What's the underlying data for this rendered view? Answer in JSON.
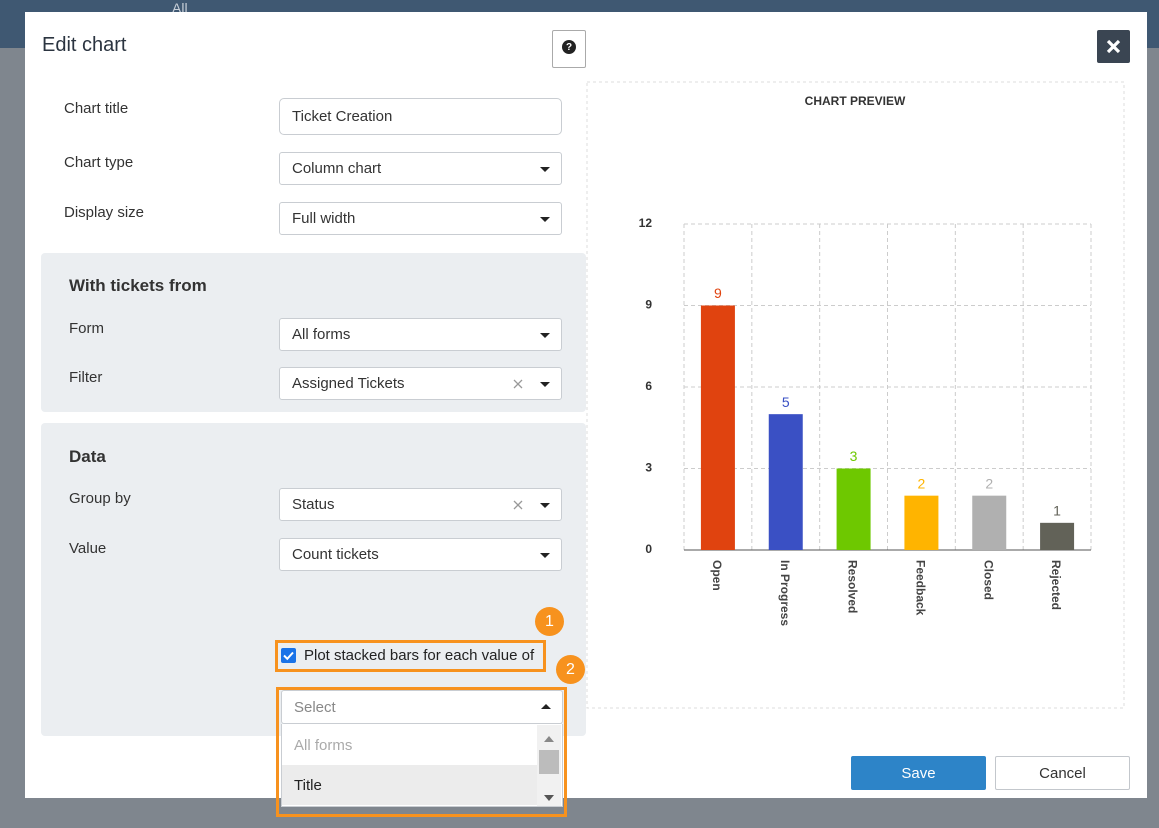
{
  "background": {
    "tab": "All"
  },
  "dialog": {
    "title": "Edit chart",
    "help": "?"
  },
  "general": [
    {
      "label": "Chart title",
      "value": "Ticket Creation"
    },
    {
      "label": "Chart type",
      "value": "Column chart"
    },
    {
      "label": "Display size",
      "value": "Full width"
    }
  ],
  "source": {
    "heading": "With tickets from",
    "fields": [
      {
        "label": "Form",
        "value": "All forms"
      },
      {
        "label": "Filter",
        "value": "Assigned Tickets"
      }
    ]
  },
  "data_section": {
    "heading": "Data",
    "fields": [
      {
        "label": "Group by",
        "value": "Status"
      },
      {
        "label": "Value",
        "value": "Count tickets"
      }
    ],
    "stacked_checkbox": "Plot stacked bars for each value of",
    "stacked_select": {
      "placeholder": "Select",
      "options": [
        "All forms",
        "Title"
      ]
    }
  },
  "annotations": [
    "1",
    "2"
  ],
  "buttons": {
    "save": "Save",
    "cancel": "Cancel"
  },
  "chart_data": {
    "type": "bar",
    "title": "CHART PREVIEW",
    "categories": [
      "Open",
      "In Progress",
      "Resolved",
      "Feedback",
      "Closed",
      "Rejected"
    ],
    "values": [
      9,
      5,
      3,
      2,
      2,
      1
    ],
    "colors": [
      "#e0430f",
      "#3a50c4",
      "#6ec800",
      "#ffb400",
      "#b0b0b0",
      "#626258"
    ],
    "ylim": [
      0,
      12
    ],
    "yticks": [
      0,
      3,
      6,
      9,
      12
    ],
    "grid": true
  }
}
